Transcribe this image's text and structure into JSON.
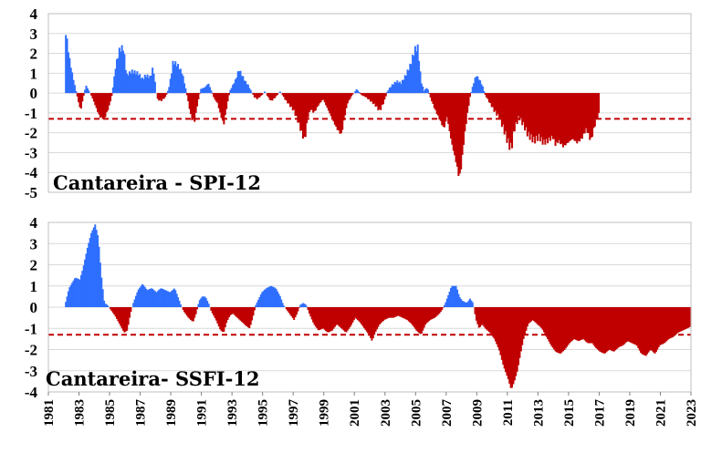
{
  "chart_data": [
    {
      "type": "bar",
      "title": "Cantareira - SPI-12",
      "ylim": [
        -5,
        4
      ],
      "yticks": [
        "4",
        "3",
        "2",
        "1",
        "0",
        "-1",
        "-2",
        "-3",
        "-4",
        "-5"
      ],
      "threshold": -1.3,
      "x_range": [
        1981,
        2023
      ],
      "positive_color": "#2f6fff",
      "negative_color": "#c00000",
      "threshold_color": "#c00000",
      "start_year": 1982.0,
      "keypoints": [
        [
          1982.0,
          0
        ],
        [
          1982.08,
          3.1
        ],
        [
          1982.35,
          1.6
        ],
        [
          1982.55,
          0.8
        ],
        [
          1982.75,
          0.1
        ],
        [
          1982.9,
          -0.4
        ],
        [
          1983.05,
          -0.9
        ],
        [
          1983.2,
          -0.3
        ],
        [
          1983.4,
          0.4
        ],
        [
          1983.6,
          0.1
        ],
        [
          1983.8,
          -0.2
        ],
        [
          1984.0,
          -0.6
        ],
        [
          1984.3,
          -1.2
        ],
        [
          1984.6,
          -1.3
        ],
        [
          1984.9,
          -0.7
        ],
        [
          1985.1,
          -0.1
        ],
        [
          1985.35,
          1.4
        ],
        [
          1985.6,
          2.2
        ],
        [
          1985.85,
          2.3
        ],
        [
          1986.05,
          0.9
        ],
        [
          1986.4,
          1.1
        ],
        [
          1986.8,
          1.0
        ],
        [
          1987.1,
          0.7
        ],
        [
          1987.3,
          0.9
        ],
        [
          1987.6,
          0.8
        ],
        [
          1987.8,
          1.3
        ],
        [
          1987.95,
          0.3
        ],
        [
          1988.05,
          -0.3
        ],
        [
          1988.3,
          -0.4
        ],
        [
          1988.6,
          -0.2
        ],
        [
          1988.8,
          0.2
        ],
        [
          1988.95,
          0.8
        ],
        [
          1989.1,
          1.6
        ],
        [
          1989.4,
          1.4
        ],
        [
          1989.7,
          1.0
        ],
        [
          1989.95,
          0.1
        ],
        [
          1990.1,
          -0.5
        ],
        [
          1990.3,
          -1.3
        ],
        [
          1990.5,
          -1.4
        ],
        [
          1990.7,
          -0.5
        ],
        [
          1990.9,
          0.2
        ],
        [
          1991.2,
          0.3
        ],
        [
          1991.4,
          0.5
        ],
        [
          1991.6,
          0.1
        ],
        [
          1991.8,
          -0.3
        ],
        [
          1992.0,
          -0.5
        ],
        [
          1992.2,
          -1.1
        ],
        [
          1992.4,
          -1.6
        ],
        [
          1992.6,
          -0.7
        ],
        [
          1992.8,
          0.1
        ],
        [
          1993.0,
          0.4
        ],
        [
          1993.2,
          0.7
        ],
        [
          1993.4,
          1.2
        ],
        [
          1993.6,
          0.9
        ],
        [
          1993.8,
          0.6
        ],
        [
          1994.0,
          0.4
        ],
        [
          1994.2,
          0.1
        ],
        [
          1994.4,
          -0.2
        ],
        [
          1994.6,
          -0.3
        ],
        [
          1994.9,
          -0.1
        ],
        [
          1995.1,
          0.1
        ],
        [
          1995.3,
          -0.2
        ],
        [
          1995.5,
          -0.4
        ],
        [
          1995.8,
          -0.2
        ],
        [
          1996.1,
          0.1
        ],
        [
          1996.4,
          -0.3
        ],
        [
          1996.7,
          -0.6
        ],
        [
          1997.0,
          -0.9
        ],
        [
          1997.3,
          -1.5
        ],
        [
          1997.5,
          -2.0
        ],
        [
          1997.7,
          -2.4
        ],
        [
          1997.9,
          -1.2
        ],
        [
          1998.1,
          -0.8
        ],
        [
          1998.3,
          -1.0
        ],
        [
          1998.6,
          -0.6
        ],
        [
          1998.9,
          -0.3
        ],
        [
          1999.2,
          -0.8
        ],
        [
          1999.5,
          -1.3
        ],
        [
          1999.8,
          -1.8
        ],
        [
          2000.1,
          -2.1
        ],
        [
          2000.3,
          -1.2
        ],
        [
          2000.5,
          -0.5
        ],
        [
          2000.8,
          -0.1
        ],
        [
          2001.1,
          0.2
        ],
        [
          2001.4,
          -0.1
        ],
        [
          2001.7,
          -0.2
        ],
        [
          2002.0,
          -0.4
        ],
        [
          2002.3,
          -0.6
        ],
        [
          2002.6,
          -0.9
        ],
        [
          2002.9,
          -0.4
        ],
        [
          2003.1,
          0.1
        ],
        [
          2003.4,
          0.4
        ],
        [
          2003.7,
          0.6
        ],
        [
          2004.0,
          0.5
        ],
        [
          2004.3,
          0.9
        ],
        [
          2004.6,
          1.4
        ],
        [
          2004.9,
          2.2
        ],
        [
          2005.1,
          2.3
        ],
        [
          2005.3,
          0.6
        ],
        [
          2005.5,
          0.1
        ],
        [
          2005.7,
          0.3
        ],
        [
          2005.9,
          -0.2
        ],
        [
          2006.2,
          -0.8
        ],
        [
          2006.5,
          -1.3
        ],
        [
          2006.8,
          -1.8
        ],
        [
          2007.0,
          -1.2
        ],
        [
          2007.3,
          -2.5
        ],
        [
          2007.6,
          -3.5
        ],
        [
          2007.8,
          -4.3
        ],
        [
          2007.95,
          -3.6
        ],
        [
          2008.1,
          -2.4
        ],
        [
          2008.3,
          -1.2
        ],
        [
          2008.5,
          -0.2
        ],
        [
          2008.7,
          0.4
        ],
        [
          2008.9,
          0.9
        ],
        [
          2009.1,
          0.7
        ],
        [
          2009.3,
          0.4
        ],
        [
          2009.5,
          -0.1
        ],
        [
          2009.8,
          -0.5
        ],
        [
          2010.1,
          -0.9
        ],
        [
          2010.4,
          -1.2
        ],
        [
          2010.7,
          -1.8
        ],
        [
          2011.0,
          -2.5
        ],
        [
          2011.2,
          -2.8
        ],
        [
          2011.4,
          -1.8
        ],
        [
          2011.7,
          -1.2
        ],
        [
          2012.0,
          -1.6
        ],
        [
          2012.3,
          -2.1
        ],
        [
          2012.7,
          -2.4
        ],
        [
          2013.0,
          -2.2
        ],
        [
          2013.3,
          -2.5
        ],
        [
          2013.6,
          -2.4
        ],
        [
          2013.9,
          -2.2
        ],
        [
          2014.1,
          -2.6
        ],
        [
          2014.3,
          -2.4
        ],
        [
          2014.6,
          -2.7
        ],
        [
          2014.9,
          -2.5
        ],
        [
          2015.2,
          -2.3
        ],
        [
          2015.5,
          -2.5
        ],
        [
          2015.8,
          -2.3
        ],
        [
          2016.1,
          -1.8
        ],
        [
          2016.4,
          -2.4
        ],
        [
          2016.7,
          -1.5
        ],
        [
          2016.95,
          -1.0
        ]
      ]
    },
    {
      "type": "area",
      "title": "Cantareira- SSFI-12",
      "ylim": [
        -4,
        4
      ],
      "yticks": [
        "4",
        "3",
        "2",
        "1",
        "0",
        "-1",
        "-2",
        "-3",
        "-4"
      ],
      "threshold": -1.3,
      "x_range": [
        1981,
        2023
      ],
      "xticks": [
        "1981",
        "1983",
        "1985",
        "1987",
        "1989",
        "1991",
        "1993",
        "1995",
        "1997",
        "1999",
        "2001",
        "2003",
        "2005",
        "2007",
        "2009",
        "2011",
        "2013",
        "2015",
        "2017",
        "2019",
        "2021",
        "2023"
      ],
      "positive_color": "#2f6fff",
      "negative_color": "#c00000",
      "threshold_color": "#c00000",
      "keypoints": [
        [
          1982.0,
          0
        ],
        [
          1982.3,
          0.9
        ],
        [
          1982.7,
          1.4
        ],
        [
          1983.0,
          1.3
        ],
        [
          1983.2,
          1.8
        ],
        [
          1983.5,
          2.8
        ],
        [
          1983.75,
          3.5
        ],
        [
          1984.0,
          3.9
        ],
        [
          1984.2,
          3.3
        ],
        [
          1984.4,
          1.5
        ],
        [
          1984.6,
          0.2
        ],
        [
          1984.8,
          0.1
        ],
        [
          1985.0,
          -0.1
        ],
        [
          1985.3,
          -0.4
        ],
        [
          1985.6,
          -0.8
        ],
        [
          1985.9,
          -1.2
        ],
        [
          1986.1,
          -1.1
        ],
        [
          1986.3,
          -0.3
        ],
        [
          1986.5,
          0.2
        ],
        [
          1986.8,
          0.8
        ],
        [
          1987.1,
          1.1
        ],
        [
          1987.4,
          0.8
        ],
        [
          1987.7,
          0.9
        ],
        [
          1988.0,
          0.7
        ],
        [
          1988.3,
          0.9
        ],
        [
          1988.6,
          0.8
        ],
        [
          1988.9,
          0.7
        ],
        [
          1989.2,
          0.9
        ],
        [
          1989.4,
          0.5
        ],
        [
          1989.6,
          0.1
        ],
        [
          1989.8,
          -0.2
        ],
        [
          1990.1,
          -0.5
        ],
        [
          1990.4,
          -0.7
        ],
        [
          1990.6,
          -0.3
        ],
        [
          1990.8,
          0.3
        ],
        [
          1991.0,
          0.5
        ],
        [
          1991.2,
          0.5
        ],
        [
          1991.4,
          0.2
        ],
        [
          1991.6,
          -0.2
        ],
        [
          1991.9,
          -0.6
        ],
        [
          1992.2,
          -1.1
        ],
        [
          1992.4,
          -1.2
        ],
        [
          1992.6,
          -0.7
        ],
        [
          1992.8,
          -0.4
        ],
        [
          1993.0,
          -0.3
        ],
        [
          1993.3,
          -0.5
        ],
        [
          1993.6,
          -0.7
        ],
        [
          1993.9,
          -0.9
        ],
        [
          1994.1,
          -1.0
        ],
        [
          1994.3,
          -0.5
        ],
        [
          1994.5,
          0.1
        ],
        [
          1994.7,
          0.4
        ],
        [
          1994.9,
          0.7
        ],
        [
          1995.2,
          0.9
        ],
        [
          1995.5,
          1.0
        ],
        [
          1995.8,
          0.9
        ],
        [
          1996.1,
          0.5
        ],
        [
          1996.3,
          0.1
        ],
        [
          1996.5,
          -0.1
        ],
        [
          1996.8,
          -0.4
        ],
        [
          1997.0,
          -0.6
        ],
        [
          1997.2,
          -0.3
        ],
        [
          1997.4,
          0.1
        ],
        [
          1997.6,
          0.2
        ],
        [
          1997.8,
          0.1
        ],
        [
          1998.0,
          -0.3
        ],
        [
          1998.3,
          -0.8
        ],
        [
          1998.6,
          -1.1
        ],
        [
          1998.9,
          -1.0
        ],
        [
          1999.2,
          -1.2
        ],
        [
          1999.5,
          -1.1
        ],
        [
          1999.8,
          -0.8
        ],
        [
          2000.1,
          -1.0
        ],
        [
          2000.4,
          -1.2
        ],
        [
          2000.7,
          -0.9
        ],
        [
          2001.0,
          -0.5
        ],
        [
          2001.3,
          -0.7
        ],
        [
          2001.6,
          -1.0
        ],
        [
          2001.9,
          -1.3
        ],
        [
          2002.1,
          -1.6
        ],
        [
          2002.3,
          -1.2
        ],
        [
          2002.6,
          -0.8
        ],
        [
          2002.9,
          -0.6
        ],
        [
          2003.2,
          -0.5
        ],
        [
          2003.5,
          -0.5
        ],
        [
          2003.8,
          -0.4
        ],
        [
          2004.1,
          -0.5
        ],
        [
          2004.4,
          -0.6
        ],
        [
          2004.7,
          -0.8
        ],
        [
          2005.0,
          -1.1
        ],
        [
          2005.3,
          -1.3
        ],
        [
          2005.6,
          -0.8
        ],
        [
          2005.9,
          -0.6
        ],
        [
          2006.2,
          -0.5
        ],
        [
          2006.5,
          -0.3
        ],
        [
          2006.7,
          -0.1
        ],
        [
          2006.9,
          0.2
        ],
        [
          2007.1,
          0.6
        ],
        [
          2007.3,
          1.0
        ],
        [
          2007.6,
          1.0
        ],
        [
          2007.8,
          0.5
        ],
        [
          2008.0,
          0.3
        ],
        [
          2008.3,
          0.2
        ],
        [
          2008.5,
          0.4
        ],
        [
          2008.7,
          0.2
        ],
        [
          2008.9,
          -0.6
        ],
        [
          2009.1,
          -1.0
        ],
        [
          2009.3,
          -0.8
        ],
        [
          2009.5,
          -1.0
        ],
        [
          2009.8,
          -1.2
        ],
        [
          2010.1,
          -1.5
        ],
        [
          2010.4,
          -2.0
        ],
        [
          2010.7,
          -2.8
        ],
        [
          2011.0,
          -3.4
        ],
        [
          2011.2,
          -3.9
        ],
        [
          2011.4,
          -3.5
        ],
        [
          2011.6,
          -3.0
        ],
        [
          2011.8,
          -2.2
        ],
        [
          2012.0,
          -1.5
        ],
        [
          2012.3,
          -0.8
        ],
        [
          2012.6,
          -0.6
        ],
        [
          2012.9,
          -0.8
        ],
        [
          2013.2,
          -1.0
        ],
        [
          2013.5,
          -1.4
        ],
        [
          2013.8,
          -1.8
        ],
        [
          2014.1,
          -2.1
        ],
        [
          2014.4,
          -2.2
        ],
        [
          2014.7,
          -2.0
        ],
        [
          2015.0,
          -1.7
        ],
        [
          2015.3,
          -1.5
        ],
        [
          2015.6,
          -1.6
        ],
        [
          2015.9,
          -1.5
        ],
        [
          2016.2,
          -1.7
        ],
        [
          2016.5,
          -1.7
        ],
        [
          2016.7,
          -1.9
        ],
        [
          2017.0,
          -2.1
        ],
        [
          2017.3,
          -2.2
        ],
        [
          2017.6,
          -2.0
        ],
        [
          2017.9,
          -2.1
        ],
        [
          2018.2,
          -1.9
        ],
        [
          2018.5,
          -1.8
        ],
        [
          2018.8,
          -1.6
        ],
        [
          2019.1,
          -1.7
        ],
        [
          2019.4,
          -1.8
        ],
        [
          2019.7,
          -2.2
        ],
        [
          2020.0,
          -2.3
        ],
        [
          2020.3,
          -2.0
        ],
        [
          2020.6,
          -2.2
        ],
        [
          2020.9,
          -1.8
        ],
        [
          2021.2,
          -1.7
        ],
        [
          2021.5,
          -1.5
        ],
        [
          2021.8,
          -1.4
        ],
        [
          2022.1,
          -1.2
        ],
        [
          2022.4,
          -1.1
        ],
        [
          2022.7,
          -1.0
        ],
        [
          2022.95,
          -0.9
        ]
      ]
    }
  ]
}
